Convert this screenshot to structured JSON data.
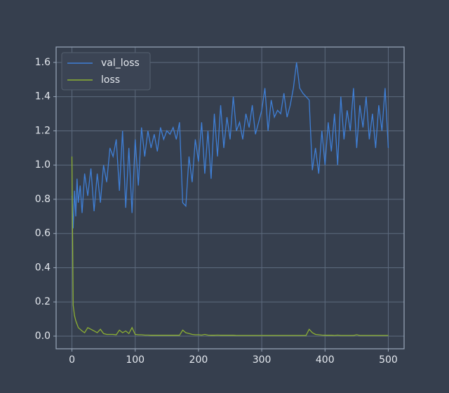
{
  "chart_data": {
    "type": "line",
    "x": [
      0,
      2,
      4,
      6,
      8,
      10,
      13,
      16,
      20,
      25,
      30,
      35,
      40,
      45,
      50,
      55,
      60,
      65,
      70,
      75,
      80,
      85,
      90,
      95,
      100,
      105,
      110,
      115,
      120,
      125,
      130,
      135,
      140,
      145,
      150,
      155,
      160,
      165,
      170,
      175,
      180,
      185,
      190,
      195,
      200,
      205,
      210,
      215,
      220,
      225,
      230,
      235,
      240,
      245,
      250,
      255,
      260,
      265,
      270,
      275,
      280,
      285,
      290,
      295,
      300,
      305,
      310,
      315,
      320,
      325,
      330,
      335,
      340,
      345,
      350,
      355,
      360,
      365,
      370,
      375,
      380,
      385,
      390,
      395,
      400,
      405,
      410,
      415,
      420,
      425,
      430,
      435,
      440,
      445,
      450,
      455,
      460,
      465,
      470,
      475,
      480,
      485,
      490,
      495,
      500
    ],
    "series": [
      {
        "name": "val_loss",
        "color": "#3f7fd6",
        "values": [
          0.82,
          0.63,
          0.85,
          0.7,
          0.92,
          0.78,
          0.88,
          0.72,
          0.95,
          0.82,
          0.98,
          0.73,
          0.95,
          0.78,
          1.0,
          0.9,
          1.1,
          1.05,
          1.15,
          0.85,
          1.2,
          0.75,
          1.1,
          0.72,
          1.15,
          0.88,
          1.22,
          1.05,
          1.2,
          1.1,
          1.18,
          1.08,
          1.22,
          1.15,
          1.2,
          1.18,
          1.22,
          1.15,
          1.25,
          0.78,
          0.76,
          1.05,
          0.9,
          1.15,
          1.02,
          1.25,
          0.95,
          1.2,
          0.92,
          1.3,
          1.05,
          1.35,
          1.1,
          1.28,
          1.15,
          1.4,
          1.2,
          1.25,
          1.15,
          1.3,
          1.22,
          1.35,
          1.18,
          1.25,
          1.32,
          1.45,
          1.2,
          1.38,
          1.28,
          1.32,
          1.3,
          1.42,
          1.28,
          1.35,
          1.45,
          1.6,
          1.45,
          1.42,
          1.4,
          1.38,
          0.97,
          1.1,
          0.95,
          1.2,
          1.0,
          1.25,
          1.08,
          1.3,
          1.0,
          1.4,
          1.15,
          1.32,
          1.2,
          1.45,
          1.1,
          1.35,
          1.22,
          1.4,
          1.15,
          1.3,
          1.1,
          1.35,
          1.2,
          1.45,
          1.1
        ]
      },
      {
        "name": "loss",
        "color": "#8db033",
        "values": [
          1.05,
          0.18,
          0.12,
          0.09,
          0.07,
          0.05,
          0.04,
          0.03,
          0.02,
          0.05,
          0.04,
          0.03,
          0.02,
          0.04,
          0.015,
          0.01,
          0.01,
          0.01,
          0.008,
          0.035,
          0.02,
          0.03,
          0.015,
          0.05,
          0.01,
          0.008,
          0.008,
          0.006,
          0.006,
          0.005,
          0.005,
          0.005,
          0.005,
          0.005,
          0.005,
          0.005,
          0.005,
          0.005,
          0.005,
          0.035,
          0.02,
          0.015,
          0.01,
          0.008,
          0.008,
          0.006,
          0.01,
          0.006,
          0.005,
          0.005,
          0.006,
          0.005,
          0.005,
          0.005,
          0.005,
          0.005,
          0.004,
          0.004,
          0.004,
          0.004,
          0.004,
          0.004,
          0.004,
          0.004,
          0.004,
          0.004,
          0.004,
          0.004,
          0.004,
          0.004,
          0.004,
          0.004,
          0.004,
          0.004,
          0.004,
          0.004,
          0.004,
          0.004,
          0.004,
          0.04,
          0.02,
          0.01,
          0.008,
          0.006,
          0.005,
          0.005,
          0.005,
          0.004,
          0.006,
          0.004,
          0.004,
          0.004,
          0.004,
          0.004,
          0.008,
          0.004,
          0.004,
          0.004,
          0.004,
          0.004,
          0.004,
          0.004,
          0.004,
          0.004,
          0.004
        ]
      }
    ],
    "xlim": [
      -25,
      525
    ],
    "ylim": [
      -0.074,
      1.69
    ],
    "xticks": [
      0,
      100,
      200,
      300,
      400,
      500
    ],
    "yticks": [
      {
        "value": 0,
        "label": "0.0"
      },
      {
        "value": 0.2,
        "label": "0.2"
      },
      {
        "value": 0.4,
        "label": "0.4"
      },
      {
        "value": 0.6,
        "label": "0.6"
      },
      {
        "value": 0.8,
        "label": "0.8"
      },
      {
        "value": 1.0,
        "label": "1.0"
      },
      {
        "value": 1.2,
        "label": "1.2"
      },
      {
        "value": 1.4,
        "label": "1.4"
      },
      {
        "value": 1.6,
        "label": "1.6"
      }
    ],
    "grid": true,
    "legend": "upper left"
  }
}
